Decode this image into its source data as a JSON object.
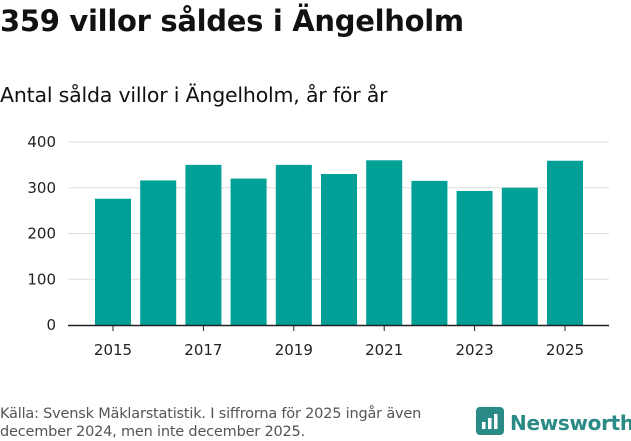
{
  "title": "359 villor såldes i Ängelholm",
  "subtitle": "Antal sålda villor i Ängelholm, år för år",
  "source": "Källa: Svensk Mäklarstatistik. I siffrorna för 2025 ingår även december 2024, men inte december 2025.",
  "brand": {
    "name": "Newsworthy",
    "icon": "newsworthy-logo-icon"
  },
  "colors": {
    "bar": "#00a096",
    "grid": "#dddddd",
    "axis": "#222222",
    "brand": "#2a8a86"
  },
  "chart_data": {
    "type": "bar",
    "title": "Antal sålda villor i Ängelholm, år för år",
    "xlabel": "",
    "ylabel": "",
    "categories": [
      "2015",
      "2016",
      "2017",
      "2018",
      "2019",
      "2020",
      "2021",
      "2022",
      "2023",
      "2024",
      "2025"
    ],
    "values": [
      276,
      316,
      350,
      320,
      350,
      330,
      360,
      315,
      293,
      300,
      359
    ],
    "ylim": [
      0,
      400
    ],
    "yticks": [
      0,
      100,
      200,
      300,
      400
    ],
    "xtick_labels": [
      "2015",
      "2017",
      "2019",
      "2021",
      "2023",
      "2025"
    ],
    "grid": true,
    "legend": "none"
  }
}
